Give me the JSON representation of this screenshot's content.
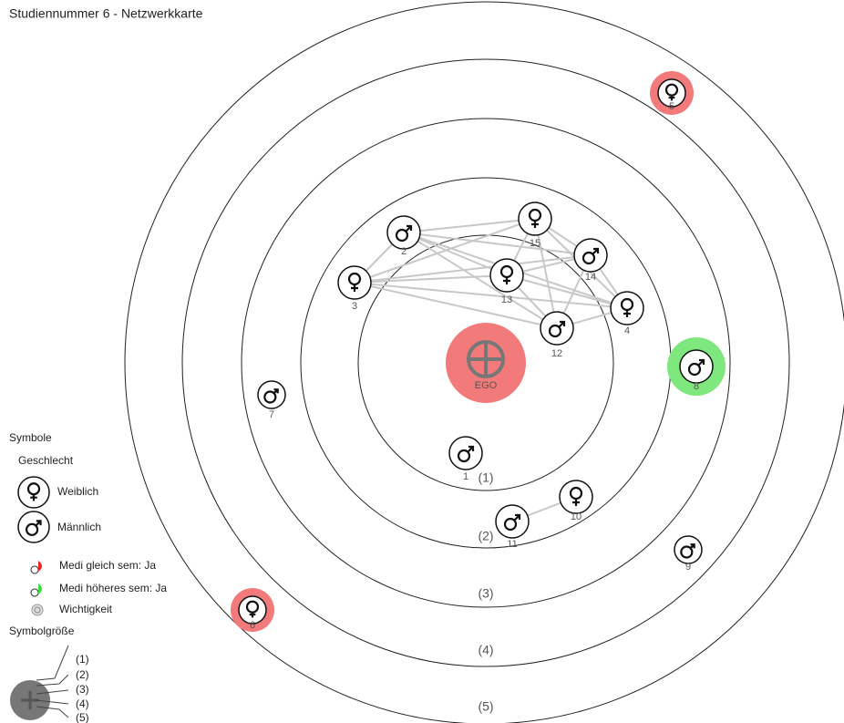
{
  "header": {
    "title": "Studiennummer 6 - Netzwerkkarte"
  },
  "rings": [
    "(1)",
    "(2)",
    "(3)",
    "(4)",
    "(5)"
  ],
  "nodes": [
    {
      "label": "EGO"
    },
    {
      "label": "2"
    },
    {
      "label": "15"
    },
    {
      "label": "14"
    },
    {
      "label": "13"
    },
    {
      "label": "3"
    },
    {
      "label": "4"
    },
    {
      "label": "12"
    },
    {
      "label": "8"
    },
    {
      "label": "7"
    },
    {
      "label": "1"
    },
    {
      "label": "10"
    },
    {
      "label": "11"
    },
    {
      "label": "9"
    },
    {
      "label": "5"
    },
    {
      "label": "6"
    }
  ],
  "legend": {
    "title": "Symbole",
    "gender_title": "Geschlecht",
    "female": "Weiblich",
    "male": "Männlich",
    "items": [
      "Medi gleich sem: Ja",
      "Medi höheres sem: Ja",
      "Wichtigkeit"
    ],
    "size_title": "Symbolgröße",
    "sizes": [
      "(1)",
      "(2)",
      "(3)",
      "(4)",
      "(5)"
    ]
  }
}
